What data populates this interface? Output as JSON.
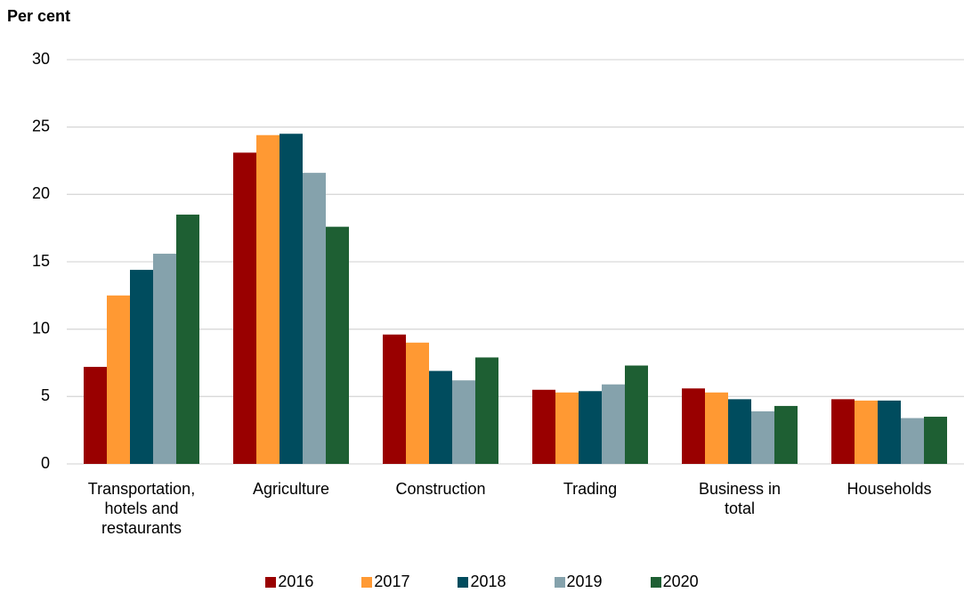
{
  "chart_data": {
    "type": "bar",
    "title": "Per cent",
    "categories": [
      "Transportation, hotels and restaurants",
      "Agriculture",
      "Construction",
      "Trading",
      "Business in total",
      "Households"
    ],
    "series": [
      {
        "name": "2016",
        "color": "#990000",
        "values": [
          7.2,
          23.1,
          9.6,
          5.5,
          5.6,
          4.8
        ]
      },
      {
        "name": "2017",
        "color": "#ff9933",
        "values": [
          12.5,
          24.4,
          9.0,
          5.3,
          5.3,
          4.7
        ]
      },
      {
        "name": "2018",
        "color": "#004c5e",
        "values": [
          14.4,
          24.5,
          6.9,
          5.4,
          4.8,
          4.7
        ]
      },
      {
        "name": "2019",
        "color": "#85a2ac",
        "values": [
          15.6,
          21.6,
          6.2,
          5.9,
          3.9,
          3.4
        ]
      },
      {
        "name": "2020",
        "color": "#1e5f33",
        "values": [
          18.5,
          17.6,
          7.9,
          7.3,
          4.3,
          3.5
        ]
      }
    ],
    "ylim": [
      0,
      30
    ],
    "yticks": [
      0,
      5,
      10,
      15,
      20,
      25,
      30
    ],
    "grid": true,
    "legend": "bottom"
  }
}
